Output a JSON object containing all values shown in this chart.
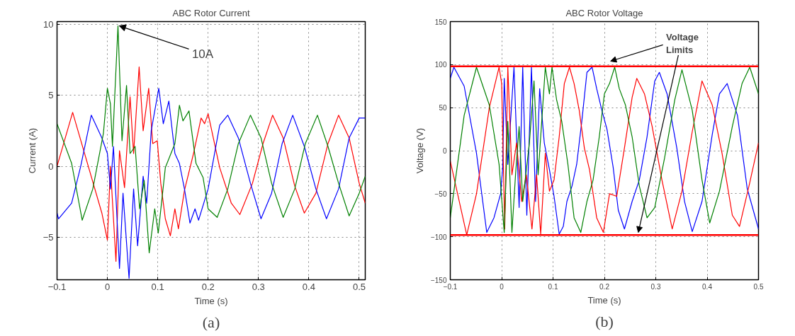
{
  "chart_data": [
    {
      "type": "line",
      "title": "ABC Rotor Current",
      "xlabel": "Time (s)",
      "ylabel": "Current (A)",
      "xlim": [
        -0.1,
        0.512
      ],
      "ylim": [
        -8,
        10.2
      ],
      "xticks": [
        {
          "value": -0.1,
          "label": "−0.1"
        },
        0,
        0.1,
        0.2,
        0.3,
        0.4,
        0.5
      ],
      "yticks": [
        {
          "value": -5,
          "label": "−5"
        },
        0,
        5,
        10
      ],
      "grid": true,
      "line_style": "solid",
      "series": [
        {
          "color": "#ff0000",
          "x": [
            -0.1,
            -0.069,
            -0.011,
            0,
            0.006,
            0.017,
            0.024,
            0.034,
            0.045,
            0.052,
            0.063,
            0.071,
            0.082,
            0.09,
            0.099,
            0.106,
            0.115,
            0.125,
            0.134,
            0.141,
            0.153,
            0.171,
            0.186,
            0.193,
            0.2,
            0.223,
            0.246,
            0.263,
            0.288,
            0.309,
            0.328,
            0.349,
            0.372,
            0.391,
            0.414,
            0.438,
            0.459,
            0.48,
            0.5,
            0.512
          ],
          "values": [
            0,
            3.8,
            -3.3,
            -5.2,
            0,
            -6.7,
            1.1,
            -1.5,
            4.9,
            0.9,
            7.0,
            2.5,
            5.5,
            1.6,
            1.8,
            -1.2,
            -3.7,
            -4.9,
            -3.0,
            -4.4,
            -1.7,
            0.9,
            3.4,
            3.0,
            3.7,
            -0.1,
            -2.6,
            -3.4,
            -1.2,
            1.6,
            3.6,
            2.0,
            -1.4,
            -3.3,
            -1.9,
            1.6,
            3.6,
            2.0,
            -1.2,
            -2.6
          ]
        },
        {
          "color": "#0000ff",
          "x": [
            -0.1,
            -0.097,
            -0.071,
            -0.053,
            -0.032,
            -0.011,
            0,
            0.006,
            0.012,
            0.024,
            0.031,
            0.043,
            0.052,
            0.06,
            0.071,
            0.078,
            0.087,
            0.102,
            0.111,
            0.122,
            0.134,
            0.143,
            0.153,
            0.164,
            0.174,
            0.181,
            0.2,
            0.223,
            0.239,
            0.26,
            0.284,
            0.305,
            0.326,
            0.347,
            0.368,
            0.391,
            0.414,
            0.435,
            0.459,
            0.48,
            0.5,
            0.512
          ],
          "values": [
            -3.3,
            -3.7,
            -2.6,
            0,
            3.6,
            2.0,
            0.9,
            -1.6,
            1.4,
            -7.2,
            -1.9,
            -7.9,
            -1.6,
            -5.6,
            -0.7,
            -2.6,
            2.5,
            5.5,
            3.0,
            4.6,
            0.9,
            0.2,
            -1.6,
            -4.0,
            -3.0,
            -3.8,
            -1.6,
            2.9,
            3.6,
            2.0,
            -1.2,
            -3.7,
            -1.9,
            1.6,
            3.6,
            1.4,
            -1.6,
            -3.7,
            -1.6,
            2.0,
            3.4,
            3.4
          ]
        },
        {
          "color": "#008000",
          "x": [
            -0.1,
            -0.071,
            -0.05,
            -0.029,
            -0.008,
            0,
            0.006,
            0.01,
            0.021,
            0.029,
            0.038,
            0.045,
            0.055,
            0.064,
            0.073,
            0.083,
            0.094,
            0.101,
            0.115,
            0.134,
            0.143,
            0.15,
            0.162,
            0.176,
            0.19,
            0.2,
            0.218,
            0.239,
            0.26,
            0.284,
            0.305,
            0.326,
            0.349,
            0.372,
            0.393,
            0.417,
            0.438,
            0.459,
            0.48,
            0.5,
            0.512
          ],
          "values": [
            3.0,
            0.2,
            -3.8,
            -1.6,
            2.3,
            5.5,
            4.4,
            1.4,
            9.9,
            1.8,
            5.7,
            0.9,
            1.4,
            -3.0,
            -1.0,
            -6.1,
            -3.0,
            -4.7,
            -0.1,
            1.6,
            4.3,
            3.2,
            3.9,
            0.2,
            -0.8,
            -3.0,
            -3.6,
            -1.6,
            1.6,
            3.6,
            2.0,
            -1.2,
            -3.6,
            -1.6,
            1.6,
            3.6,
            1.4,
            -1.2,
            -3.5,
            -1.9,
            -0.7
          ]
        }
      ],
      "annotations": [
        {
          "text": "10A",
          "x": 0.021,
          "y": 9.9
        },
        "(a)"
      ]
    },
    {
      "type": "line",
      "title": "ABC Rotor Voltage",
      "xlabel": "Time (s)",
      "ylabel": "Voltage (V)",
      "xlim": [
        -0.1,
        0.5
      ],
      "ylim": [
        -150,
        150
      ],
      "xticks": [
        {
          "value": -0.1,
          "label": "−0.1"
        },
        0,
        0.1,
        0.2,
        0.3,
        0.4,
        0.5
      ],
      "yticks": [
        {
          "value": -150,
          "label": "−150"
        },
        {
          "value": -100,
          "label": "−100"
        },
        {
          "value": -50,
          "label": "−50"
        },
        0,
        50,
        100,
        150
      ],
      "grid": true,
      "line_style": "solid",
      "ref_lines": [
        {
          "axis": "y",
          "value": 98,
          "color": "#ff0000"
        },
        {
          "axis": "y",
          "value": -98,
          "color": "#ff0000"
        }
      ],
      "series": [
        {
          "color": "#0000ff",
          "x": [
            -0.1,
            -0.093,
            -0.073,
            -0.049,
            -0.029,
            -0.015,
            -0.002,
            0.002,
            0.005,
            0.012,
            0.024,
            0.034,
            0.041,
            0.049,
            0.058,
            0.066,
            0.074,
            0.083,
            0.093,
            0.102,
            0.112,
            0.12,
            0.127,
            0.137,
            0.146,
            0.156,
            0.166,
            0.176,
            0.185,
            0.195,
            0.205,
            0.217,
            0.227,
            0.239,
            0.254,
            0.268,
            0.283,
            0.298,
            0.307,
            0.322,
            0.341,
            0.356,
            0.371,
            0.39,
            0.41,
            0.424,
            0.439,
            0.459,
            0.478,
            0.5
          ],
          "values": [
            84,
            97,
            75,
            -3,
            -95,
            -78,
            -50,
            -20,
            84,
            -16,
            97,
            -66,
            97,
            -75,
            97,
            -59,
            72,
            9,
            -22,
            -53,
            -97,
            -88,
            -59,
            -41,
            -16,
            34,
            91,
            97,
            72,
            47,
            25,
            -19,
            -69,
            -91,
            -59,
            -34,
            16,
            81,
            91,
            66,
            3,
            -59,
            -94,
            -59,
            19,
            66,
            78,
            41,
            -44,
            -91
          ]
        },
        {
          "color": "#ff0000",
          "x": [
            -0.1,
            -0.068,
            -0.049,
            -0.024,
            -0.005,
            0,
            0.006,
            0.012,
            0.02,
            0.029,
            0.039,
            0.048,
            0.059,
            0.068,
            0.076,
            0.085,
            0.093,
            0.102,
            0.112,
            0.122,
            0.132,
            0.141,
            0.151,
            0.161,
            0.171,
            0.185,
            0.198,
            0.21,
            0.224,
            0.239,
            0.254,
            0.263,
            0.278,
            0.293,
            0.312,
            0.332,
            0.351,
            0.371,
            0.39,
            0.41,
            0.429,
            0.449,
            0.463,
            0.483,
            0.5
          ],
          "values": [
            -12,
            -98,
            -50,
            50,
            97,
            78,
            -91,
            97,
            -28,
            9,
            -59,
            -28,
            -91,
            -28,
            -97,
            -3,
            -47,
            -34,
            16,
            78,
            97,
            78,
            47,
            3,
            -22,
            -78,
            -95,
            -50,
            -53,
            3,
            62,
            84,
            66,
            28,
            -34,
            -91,
            -47,
            22,
            81,
            53,
            -3,
            -75,
            -88,
            -37,
            9
          ]
        },
        {
          "color": "#008000",
          "x": [
            -0.1,
            -0.073,
            -0.049,
            -0.024,
            -0.005,
            0.005,
            0.012,
            0.02,
            0.027,
            0.034,
            0.041,
            0.054,
            0.063,
            0.071,
            0.078,
            0.085,
            0.093,
            0.098,
            0.107,
            0.117,
            0.129,
            0.141,
            0.154,
            0.166,
            0.178,
            0.19,
            0.2,
            0.21,
            0.22,
            0.229,
            0.241,
            0.254,
            0.268,
            0.283,
            0.298,
            0.317,
            0.337,
            0.351,
            0.371,
            0.39,
            0.405,
            0.424,
            0.449,
            0.468,
            0.483,
            0.5
          ],
          "values": [
            -78,
            41,
            97,
            53,
            -16,
            -95,
            34,
            -95,
            -28,
            28,
            -59,
            9,
            81,
            -28,
            34,
            97,
            66,
            97,
            59,
            34,
            -16,
            -78,
            -95,
            -59,
            -34,
            16,
            66,
            78,
            97,
            72,
            53,
            16,
            -41,
            -78,
            -66,
            -9,
            59,
            94,
            47,
            -34,
            -84,
            -47,
            28,
            78,
            97,
            66
          ]
        }
      ],
      "annotations": [
        "Voltage Limits",
        "(b)"
      ]
    }
  ]
}
